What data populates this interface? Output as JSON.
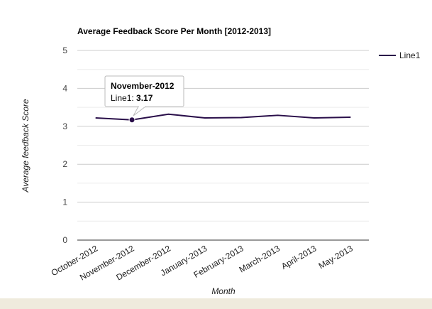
{
  "chart_data": {
    "type": "line",
    "title": "Average Feedback Score Per Month [2012-2013]",
    "xlabel": "Month",
    "ylabel": "Average feedback Score",
    "categories": [
      "October-2012",
      "November-2012",
      "December-2012",
      "January-2013",
      "February-2013",
      "March-2013",
      "April-2013",
      "May-2013"
    ],
    "series": [
      {
        "name": "Line1",
        "color": "#2a0f4a",
        "values": [
          3.22,
          3.17,
          3.32,
          3.22,
          3.23,
          3.29,
          3.22,
          3.24
        ]
      }
    ],
    "ylim": [
      0,
      5
    ],
    "yticks": [
      "0",
      "1",
      "2",
      "3",
      "4",
      "5"
    ],
    "grid": true,
    "legend": "right",
    "tooltip": {
      "category": "November-2012",
      "series": "Line1",
      "label": "Line1: ",
      "value": "3.17"
    }
  },
  "colors": {
    "line": "#2a0f4a",
    "grid": "#cccccc",
    "axis": "#333333",
    "footer": "#efebdd"
  }
}
